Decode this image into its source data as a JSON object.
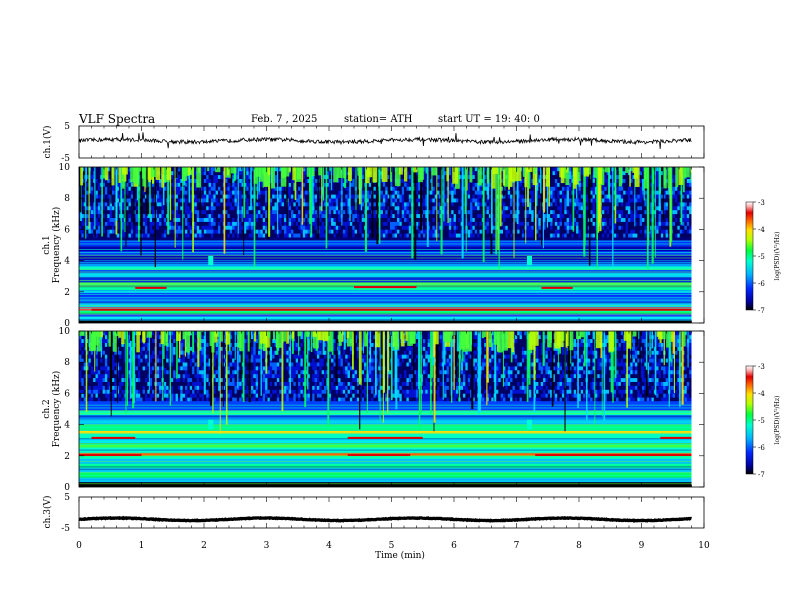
{
  "header": {
    "title": "VLF  Spectra",
    "date": "Feb. 7  , 2025",
    "station": "station= ATH",
    "start": "start  UT  =    19: 40: 0"
  },
  "colors": {
    "spectrogram_scale": [
      "#000000",
      "#0000a0",
      "#0028ff",
      "#00b4ff",
      "#00ffd0",
      "#00ff40",
      "#b4ff00",
      "#ffe000",
      "#ff6000",
      "#e00000",
      "#ffb0b0",
      "#ffffff"
    ],
    "trace": "#000000"
  },
  "chart_data": [
    {
      "type": "line",
      "title": "",
      "ylabel": "ch.1(V)",
      "xlim": [
        0,
        10
      ],
      "ylim": [
        -5,
        5
      ],
      "yticks": [
        "5",
        "-5"
      ],
      "description_of_series": "",
      "series": [
        {
          "values": [
            0,
            9.8
          ],
          "baseline_v": 0.3,
          "noise_v": 0.8
        }
      ]
    },
    {
      "type": "heatmap",
      "ylabel_top": "ch.1",
      "ylabel": "Frequency  (kHz)",
      "xlim": [
        0,
        10
      ],
      "ylim": [
        0,
        10
      ],
      "yticks": [
        "0",
        "2",
        "4",
        "6",
        "8",
        "10"
      ],
      "data_end_min": 9.8,
      "colorbar": {
        "label": "log(PSD)(V²/Hz)",
        "ticks": [
          "-3",
          "-4",
          "-5",
          "-6",
          "-7"
        ],
        "range": [
          -7,
          -3
        ]
      }
    },
    {
      "type": "heatmap",
      "ylabel_top": "ch.2",
      "ylabel": "Frequency  (kHz)",
      "xlim": [
        0,
        10
      ],
      "ylim": [
        0,
        10
      ],
      "yticks": [
        "0",
        "2",
        "4",
        "6",
        "8",
        "10"
      ],
      "data_end_min": 9.8,
      "colorbar": {
        "label": "log(PSD)(V²/Hz)",
        "ticks": [
          "-3",
          "-4",
          "-5",
          "-6",
          "-7"
        ],
        "range": [
          -7,
          -3
        ]
      }
    },
    {
      "type": "line",
      "ylabel": "ch.3(V)",
      "xlim": [
        0,
        10
      ],
      "ylim": [
        -5,
        5
      ],
      "yticks": [
        "5",
        "-5"
      ],
      "series": [
        {
          "values": [
            0,
            9.8
          ],
          "baseline_v": -2.2,
          "noise_v": 0.1
        }
      ]
    }
  ],
  "xaxis": {
    "label": "Time  (min)",
    "ticks": [
      "0",
      "1",
      "2",
      "3",
      "4",
      "5",
      "6",
      "7",
      "8",
      "9",
      "10"
    ]
  }
}
